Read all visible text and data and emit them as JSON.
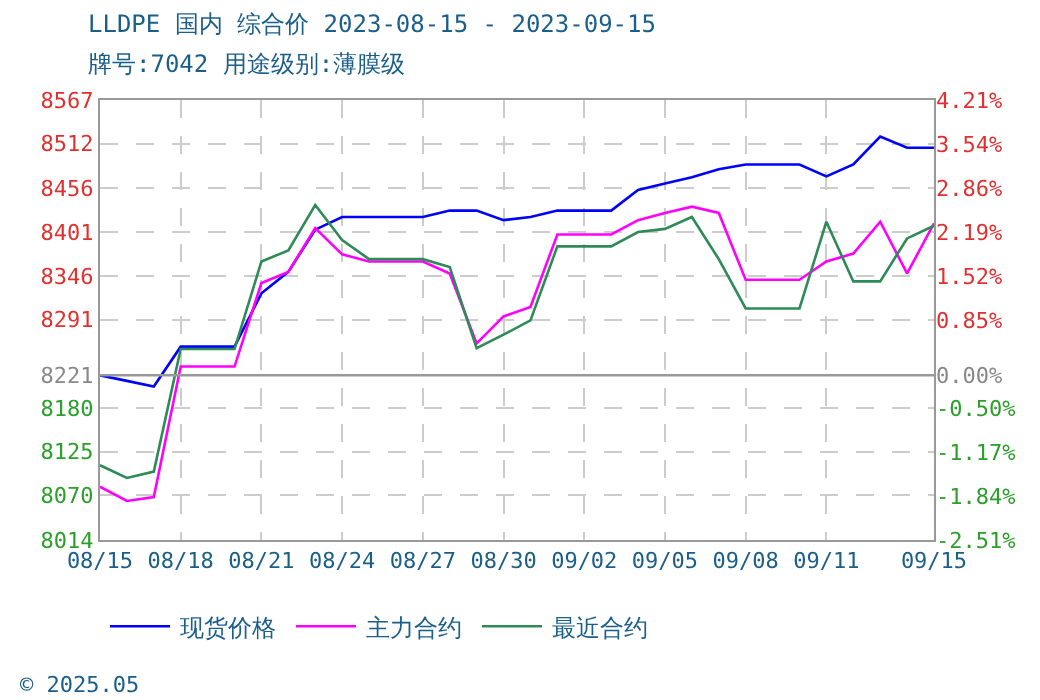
{
  "chart_data": {
    "type": "line",
    "title": "LLDPE 国内 综合价 2023-08-15 - 2023-09-15",
    "subtitle": "牌号:7042 用途级别:薄膜级",
    "x": [
      "2023-08-15",
      "2023-08-16",
      "2023-08-17",
      "2023-08-18",
      "2023-08-20",
      "2023-08-21",
      "2023-08-22",
      "2023-08-23",
      "2023-08-24",
      "2023-08-25",
      "2023-08-27",
      "2023-08-28",
      "2023-08-29",
      "2023-08-30",
      "2023-08-31",
      "2023-09-01",
      "2023-09-03",
      "2023-09-04",
      "2023-09-05",
      "2023-09-06",
      "2023-09-07",
      "2023-09-08",
      "2023-09-10",
      "2023-09-11",
      "2023-09-12",
      "2023-09-13",
      "2023-09-14",
      "2023-09-15"
    ],
    "series": [
      {
        "name": "现货价格",
        "color": "#0000ff",
        "values": [
          8221,
          8214,
          8207,
          8257,
          8257,
          8324,
          8351,
          8404,
          8420,
          8420,
          8420,
          8428,
          8428,
          8416,
          8420,
          8428,
          8428,
          8454,
          8462,
          8470,
          8480,
          8486,
          8486,
          8471,
          8486,
          8521,
          8507,
          8507
        ]
      },
      {
        "name": "主力合约",
        "color": "#ff00ff",
        "values": [
          8081,
          8063,
          8068,
          8232,
          8232,
          8337,
          8351,
          8406,
          8373,
          8364,
          8364,
          8349,
          8261,
          8295,
          8307,
          8398,
          8398,
          8416,
          8425,
          8433,
          8425,
          8341,
          8341,
          8364,
          8374,
          8414,
          8349,
          8412
        ]
      },
      {
        "name": "最近合约",
        "color": "#2e8b57",
        "values": [
          8108,
          8092,
          8100,
          8254,
          8254,
          8364,
          8378,
          8435,
          8391,
          8367,
          8367,
          8357,
          8255,
          8272,
          8290,
          8383,
          8383,
          8401,
          8405,
          8420,
          8367,
          8305,
          8305,
          8414,
          8339,
          8339,
          8393,
          8409
        ]
      }
    ],
    "xlim": [
      "2023-08-15",
      "2023-09-15"
    ],
    "xticks": [
      {
        "value": "2023-08-15",
        "label": "08/15"
      },
      {
        "value": "2023-08-18",
        "label": "08/18"
      },
      {
        "value": "2023-08-21",
        "label": "08/21"
      },
      {
        "value": "2023-08-24",
        "label": "08/24"
      },
      {
        "value": "2023-08-27",
        "label": "08/27"
      },
      {
        "value": "2023-08-30",
        "label": "08/30"
      },
      {
        "value": "2023-09-02",
        "label": "09/02"
      },
      {
        "value": "2023-09-05",
        "label": "09/05"
      },
      {
        "value": "2023-09-08",
        "label": "09/08"
      },
      {
        "value": "2023-09-11",
        "label": "09/11"
      },
      {
        "value": "2023-09-15",
        "label": "09/15"
      }
    ],
    "ylim": [
      8014,
      8567
    ],
    "yticks": [
      8014,
      8070,
      8125,
      8180,
      8221,
      8291,
      8346,
      8401,
      8456,
      8512,
      8567
    ],
    "y2lim": [
      -2.51,
      4.21
    ],
    "y2ticks": [
      {
        "value": -2.51,
        "label": "-2.51%"
      },
      {
        "value": -1.84,
        "label": "-1.84%"
      },
      {
        "value": -1.17,
        "label": "-1.17%"
      },
      {
        "value": -0.5,
        "label": "-0.50%"
      },
      {
        "value": 0,
        "label": "0.00%"
      },
      {
        "value": 0.85,
        "label": "0.85%"
      },
      {
        "value": 1.52,
        "label": "1.52%"
      },
      {
        "value": 2.19,
        "label": "2.19%"
      },
      {
        "value": 2.86,
        "label": "2.86%"
      },
      {
        "value": 3.54,
        "label": "3.54%"
      },
      {
        "value": 4.21,
        "label": "4.21%"
      }
    ],
    "ref_lines": [
      {
        "axis": "y",
        "value": 8221,
        "color": "#999999"
      }
    ],
    "grid": true,
    "legend": "bottom",
    "marker": "none",
    "line_style": "solid",
    "annotations": [
      "© 2025.05"
    ]
  }
}
